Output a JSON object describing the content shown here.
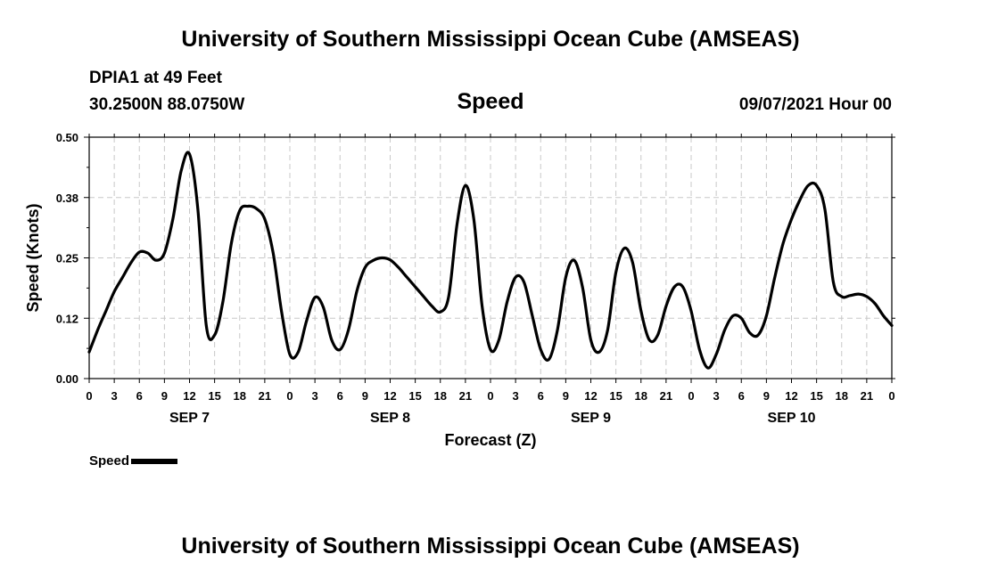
{
  "header": {
    "title": "University of Southern Mississippi Ocean Cube (AMSEAS)",
    "station": "DPIA1 at 49 Feet",
    "coords": "30.2500N  88.0750W",
    "chart_title": "Speed",
    "date": "09/07/2021 Hour 00"
  },
  "footer": {
    "title": "University of Southern Mississippi Ocean Cube (AMSEAS)"
  },
  "legend": {
    "label": "Speed"
  },
  "chart_data": {
    "type": "line",
    "title": "Speed",
    "xlabel": "Forecast (Z)",
    "ylabel": "Speed (Knots)",
    "ylim": [
      0,
      0.5
    ],
    "yticks": [
      "0.00",
      "0.12",
      "0.25",
      "0.38",
      "0.50"
    ],
    "xlim": [
      0,
      96
    ],
    "xticks": [
      "0",
      "3",
      "6",
      "9",
      "12",
      "15",
      "18",
      "21",
      "0",
      "3",
      "6",
      "9",
      "12",
      "15",
      "18",
      "21",
      "0",
      "3",
      "6",
      "9",
      "12",
      "15",
      "18",
      "21",
      "0",
      "3",
      "6",
      "9",
      "12",
      "15",
      "18",
      "21",
      "0"
    ],
    "day_labels": [
      {
        "hour": 12,
        "label": "SEP 7"
      },
      {
        "hour": 36,
        "label": "SEP 8"
      },
      {
        "hour": 60,
        "label": "SEP 9"
      },
      {
        "hour": 84,
        "label": "SEP 10"
      }
    ],
    "grid": true,
    "series": [
      {
        "name": "Speed",
        "color": "#000000",
        "x": [
          0,
          1,
          2,
          3,
          4,
          5,
          6,
          7,
          8,
          9,
          10,
          11,
          12,
          13,
          14,
          15,
          16,
          17,
          18,
          19,
          20,
          21,
          22,
          23,
          24,
          25,
          26,
          27,
          28,
          29,
          30,
          31,
          32,
          33,
          34,
          35,
          36,
          37,
          38,
          39,
          40,
          41,
          42,
          43,
          44,
          45,
          46,
          47,
          48,
          49,
          50,
          51,
          52,
          53,
          54,
          55,
          56,
          57,
          58,
          59,
          60,
          61,
          62,
          63,
          64,
          65,
          66,
          67,
          68,
          69,
          70,
          71,
          72,
          73,
          74,
          75,
          76,
          77,
          78,
          79,
          80,
          81,
          82,
          83,
          84,
          85,
          86,
          87,
          88,
          89,
          90,
          91,
          92,
          93,
          94,
          95,
          96
        ],
        "y": [
          0.055,
          0.1,
          0.14,
          0.18,
          0.21,
          0.24,
          0.262,
          0.26,
          0.245,
          0.26,
          0.33,
          0.43,
          0.465,
          0.35,
          0.11,
          0.09,
          0.16,
          0.28,
          0.348,
          0.357,
          0.352,
          0.33,
          0.26,
          0.14,
          0.05,
          0.055,
          0.12,
          0.168,
          0.148,
          0.08,
          0.06,
          0.1,
          0.18,
          0.23,
          0.245,
          0.25,
          0.246,
          0.23,
          0.21,
          0.19,
          0.17,
          0.15,
          0.138,
          0.17,
          0.32,
          0.4,
          0.33,
          0.15,
          0.06,
          0.08,
          0.16,
          0.21,
          0.2,
          0.13,
          0.06,
          0.04,
          0.1,
          0.21,
          0.245,
          0.19,
          0.08,
          0.055,
          0.1,
          0.22,
          0.27,
          0.24,
          0.14,
          0.08,
          0.09,
          0.15,
          0.19,
          0.19,
          0.14,
          0.06,
          0.022,
          0.05,
          0.1,
          0.13,
          0.125,
          0.095,
          0.09,
          0.13,
          0.21,
          0.28,
          0.33,
          0.37,
          0.4,
          0.4,
          0.35,
          0.2,
          0.17,
          0.172,
          0.175,
          0.17,
          0.155,
          0.13,
          0.11
        ]
      }
    ]
  }
}
